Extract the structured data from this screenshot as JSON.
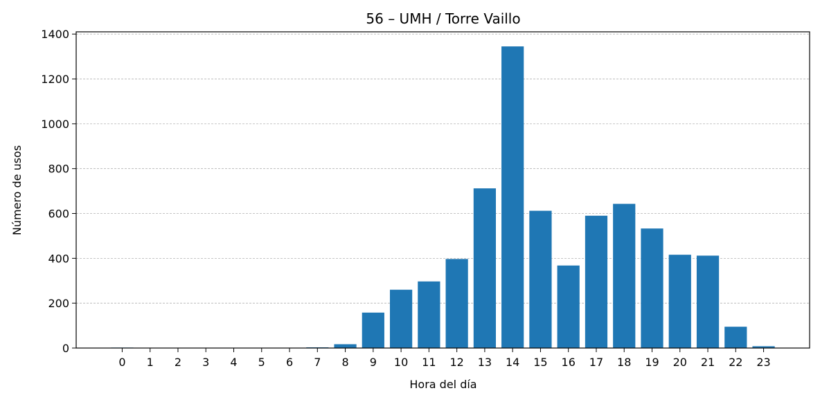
{
  "chart_data": {
    "type": "bar",
    "title": "56 – UMH / Torre Vaillo",
    "xlabel": "Hora del día",
    "ylabel": "Número de usos",
    "categories": [
      "0",
      "1",
      "2",
      "3",
      "4",
      "5",
      "6",
      "7",
      "8",
      "9",
      "10",
      "11",
      "12",
      "13",
      "14",
      "15",
      "16",
      "17",
      "18",
      "19",
      "20",
      "21",
      "22",
      "23"
    ],
    "values": [
      2,
      1,
      1,
      1,
      1,
      1,
      1,
      3,
      17,
      158,
      260,
      297,
      397,
      712,
      1345,
      612,
      368,
      590,
      643,
      533,
      416,
      412,
      95,
      8
    ],
    "ylim": [
      0,
      1410
    ],
    "yticks": [
      0,
      200,
      400,
      600,
      800,
      1000,
      1200,
      1400
    ],
    "grid": "y-dashed",
    "bar_color": "#1f77b4"
  }
}
